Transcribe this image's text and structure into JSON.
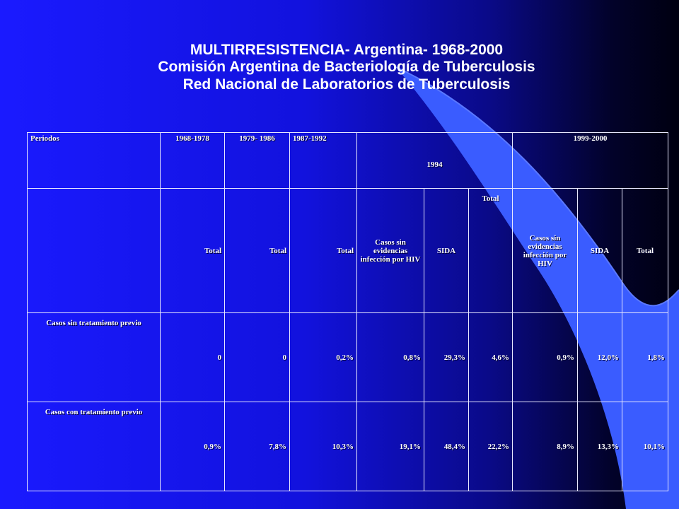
{
  "title": {
    "line1": "MULTIRRESISTENCIA- Argentina- 1968-2000",
    "line2": "Comisión Argentina de Bacteriología de Tuberculosis",
    "line3": "Red Nacional de Laboratorios de Tuberculosis"
  },
  "colors": {
    "background": "#1414e0",
    "swoosh": "#3a5cff",
    "text": "#ffffff"
  },
  "table": {
    "header": {
      "periodos": "Periodos",
      "p1": "1968-1978",
      "p2": "1979- 1986",
      "p3": "1987-1992",
      "p4": "1994",
      "p5": "1999-2000"
    },
    "subheader": {
      "total_1": "Total",
      "total_2": "Total",
      "total_3": "Total",
      "sin_hiv_1994": "Casos sin evidencias infección por HIV",
      "sida_1994": "SIDA",
      "total_1994": "Total",
      "sin_hiv_1999": "Casos sin evidencias infección por HIV",
      "sida_1999": "SIDA",
      "total_1999": "Total"
    },
    "rows": [
      {
        "label": "Casos sin tratamiento previo",
        "values": [
          "0",
          "0",
          "0,2%",
          "0,8%",
          "29,3%",
          "4,6%",
          "0,9%",
          "12,0%",
          "1,8%"
        ]
      },
      {
        "label": "Casos con tratamiento previo",
        "values": [
          "0,9%",
          "7,8%",
          "10,3%",
          "19,1%",
          "48,4%",
          "22,2%",
          "8,9%",
          "13,3%",
          "10,1%"
        ]
      }
    ]
  }
}
